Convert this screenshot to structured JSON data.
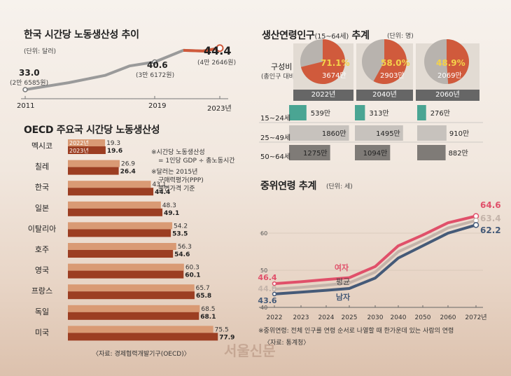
{
  "productivity": {
    "title": "한국 시간당 노동생산성 추이",
    "unit": "(단위: 달러)",
    "points": [
      {
        "year": "2011",
        "value": 33.0,
        "value_label": "33.0",
        "krw": "(2만 6585원)"
      },
      {
        "year": "2019",
        "value": 40.6,
        "value_label": "40.6",
        "krw": "(3만 6172원)"
      },
      {
        "year": "2023년",
        "value": 44.4,
        "value_label": "44.4",
        "krw": "(4만 2646원)"
      }
    ]
  },
  "oecd": {
    "title": "OECD 주요국 시간당 노동생산성",
    "year_2022": "2022년",
    "year_2023": "2023년",
    "notes": [
      "※시간당 노동생산성",
      "= 1인당 GDP ÷ 총노동시간",
      "※달러는 2015년",
      "구매력평가(PPP)",
      "불변가격 기준"
    ],
    "source": "〈자료: 경제협력개발기구(OECD)〉"
  },
  "working_age": {
    "title": "생산연령인구",
    "title_sub": "(15~64세)",
    "title_end": " 추계",
    "unit": "(단위: 명)",
    "composition_label": "구성비",
    "composition_sub": "(총인구 대비)",
    "columns": [
      {
        "year": "2022년",
        "pct": "71.1%",
        "pct_value": 71.1,
        "count": "3674만",
        "groups": [
          {
            "label": "539만",
            "value": 539
          },
          {
            "label": "1860만",
            "value": 1860
          },
          {
            "label": "1275만",
            "value": 1275
          }
        ]
      },
      {
        "year": "2040년",
        "pct": "58.0%",
        "pct_value": 58.0,
        "count": "2903만",
        "groups": [
          {
            "label": "313만",
            "value": 313
          },
          {
            "label": "1495만",
            "value": 1495
          },
          {
            "label": "1094만",
            "value": 1094
          }
        ]
      },
      {
        "year": "2060년",
        "pct": "48.9%",
        "pct_value": 48.9,
        "count": "2069만",
        "groups": [
          {
            "label": "276만",
            "value": 276
          },
          {
            "label": "910만",
            "value": 910
          },
          {
            "label": "882만",
            "value": 882
          }
        ]
      }
    ],
    "age_groups": [
      "15~24세",
      "25~49세",
      "50~64세"
    ]
  },
  "median_age": {
    "title": "중위연령 추계",
    "unit": "(단위: 세)",
    "note": "※중위연령: 전체 인구를 연령 순서로 나열할 때 한가운데 있는 사람의 연령",
    "source": "〈자료: 통계청〉"
  },
  "watermark": "서울신문",
  "colors": {
    "female": "#e0506a",
    "average": "#c4b4aa",
    "male": "#455a78",
    "accent": "#d05a3c",
    "teal": "#4aa593",
    "bar_2022": "#d99a74",
    "bar_2023": "#9c3e22"
  },
  "chart_data": [
    {
      "type": "line",
      "title": "한국 시간당 노동생산성 추이",
      "x": [
        "2011",
        "2019",
        "2023년"
      ],
      "series": [
        {
          "values": [
            33.0,
            40.6,
            44.4
          ]
        }
      ]
    },
    {
      "type": "bar",
      "title": "OECD 주요국 시간당 노동생산성",
      "categories": [
        "멕시코",
        "칠레",
        "한국",
        "일본",
        "이탈리아",
        "호주",
        "영국",
        "프랑스",
        "독일",
        "미국"
      ],
      "series": [
        {
          "name": "2022년",
          "values": [
            19.3,
            26.9,
            43.1,
            48.3,
            54.2,
            56.3,
            60.3,
            65.7,
            68.5,
            75.5
          ]
        },
        {
          "name": "2023년",
          "values": [
            19.6,
            26.4,
            44.4,
            49.1,
            53.5,
            54.6,
            60.1,
            65.8,
            68.1,
            77.9
          ]
        }
      ]
    },
    {
      "type": "line",
      "title": "중위연령 추계",
      "x": [
        "2022",
        "2023",
        "2024",
        "2025",
        "2030",
        "2040",
        "2050",
        "2060",
        "2072년"
      ],
      "yticks": [
        40,
        50,
        60
      ],
      "series": [
        {
          "name": "여자",
          "values": [
            46.4,
            46.9,
            47.5,
            48.0,
            51.0,
            56.6,
            59.5,
            62.8,
            64.6
          ]
        },
        {
          "name": "평균",
          "values": [
            44.9,
            45.4,
            46.0,
            46.6,
            49.5,
            55.0,
            58.0,
            61.4,
            63.4
          ]
        },
        {
          "name": "남자",
          "values": [
            43.6,
            44.1,
            44.6,
            45.1,
            47.9,
            53.3,
            56.6,
            60.0,
            62.2
          ]
        }
      ]
    }
  ]
}
